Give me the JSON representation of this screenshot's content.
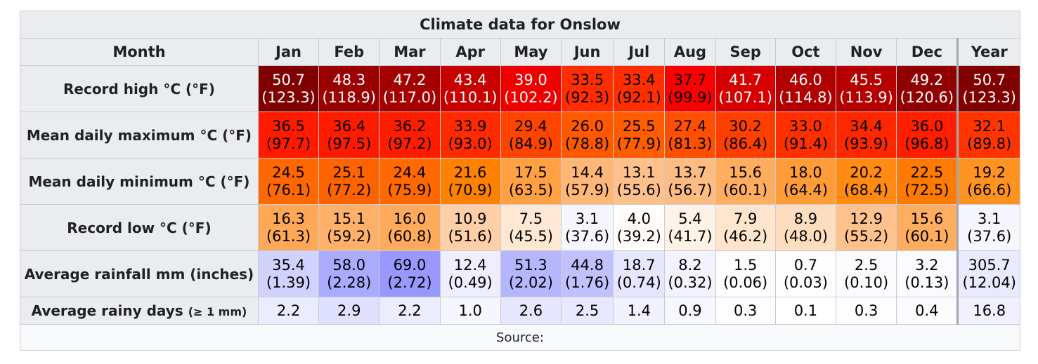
{
  "title": "Climate data for Onslow",
  "header": {
    "month_label": "Month",
    "months": [
      "Jan",
      "Feb",
      "Mar",
      "Apr",
      "May",
      "Jun",
      "Jul",
      "Aug",
      "Sep",
      "Oct",
      "Nov",
      "Dec"
    ],
    "year_label": "Year"
  },
  "rows": [
    {
      "label": "Record high °C (°F)",
      "cells": [
        {
          "c": "50.7",
          "f": "(123.3)",
          "bg": "#800000",
          "fg": "#ffffff"
        },
        {
          "c": "48.3",
          "f": "(118.9)",
          "bg": "#990000",
          "fg": "#ffffff"
        },
        {
          "c": "47.2",
          "f": "(117.0)",
          "bg": "#a40000",
          "fg": "#ffffff"
        },
        {
          "c": "43.4",
          "f": "(110.1)",
          "bg": "#c70000",
          "fg": "#ffffff"
        },
        {
          "c": "39.0",
          "f": "(102.2)",
          "bg": "#ee0000",
          "fg": "#ffffff"
        },
        {
          "c": "33.5",
          "f": "(92.3)",
          "bg": "#ff2d00",
          "fg": "#000000"
        },
        {
          "c": "33.4",
          "f": "(92.1)",
          "bg": "#ff2e00",
          "fg": "#000000"
        },
        {
          "c": "37.7",
          "f": "(99.9)",
          "bg": "#fa0000",
          "fg": "#000000"
        },
        {
          "c": "41.7",
          "f": "(107.1)",
          "bg": "#d60000",
          "fg": "#ffffff"
        },
        {
          "c": "46.0",
          "f": "(114.8)",
          "bg": "#b00000",
          "fg": "#ffffff"
        },
        {
          "c": "45.5",
          "f": "(113.9)",
          "bg": "#b40000",
          "fg": "#ffffff"
        },
        {
          "c": "49.2",
          "f": "(120.6)",
          "bg": "#900000",
          "fg": "#ffffff"
        }
      ],
      "year": {
        "c": "50.7",
        "f": "(123.3)",
        "bg": "#800000",
        "fg": "#ffffff"
      }
    },
    {
      "label": "Mean daily maximum °C (°F)",
      "cells": [
        {
          "c": "36.5",
          "f": "(97.7)",
          "bg": "#ff1a00",
          "fg": "#000000"
        },
        {
          "c": "36.4",
          "f": "(97.5)",
          "bg": "#ff1b00",
          "fg": "#000000"
        },
        {
          "c": "36.2",
          "f": "(97.2)",
          "bg": "#ff1d00",
          "fg": "#000000"
        },
        {
          "c": "33.9",
          "f": "(93.0)",
          "bg": "#ff2a00",
          "fg": "#000000"
        },
        {
          "c": "29.4",
          "f": "(84.9)",
          "bg": "#ff4400",
          "fg": "#000000"
        },
        {
          "c": "26.0",
          "f": "(78.8)",
          "bg": "#ff5900",
          "fg": "#000000"
        },
        {
          "c": "25.5",
          "f": "(77.9)",
          "bg": "#ff5d00",
          "fg": "#000000"
        },
        {
          "c": "27.4",
          "f": "(81.3)",
          "bg": "#ff4f00",
          "fg": "#000000"
        },
        {
          "c": "30.2",
          "f": "(86.4)",
          "bg": "#ff3f00",
          "fg": "#000000"
        },
        {
          "c": "33.0",
          "f": "(91.4)",
          "bg": "#ff2f00",
          "fg": "#000000"
        },
        {
          "c": "34.4",
          "f": "(93.9)",
          "bg": "#ff2700",
          "fg": "#000000"
        },
        {
          "c": "36.0",
          "f": "(96.8)",
          "bg": "#ff1e00",
          "fg": "#000000"
        }
      ],
      "year": {
        "c": "32.1",
        "f": "(89.8)",
        "bg": "#ff3400",
        "fg": "#000000"
      }
    },
    {
      "label": "Mean daily minimum °C (°F)",
      "cells": [
        {
          "c": "24.5",
          "f": "(76.1)",
          "bg": "#ff6800",
          "fg": "#000000"
        },
        {
          "c": "25.1",
          "f": "(77.2)",
          "bg": "#ff6300",
          "fg": "#000000"
        },
        {
          "c": "24.4",
          "f": "(75.9)",
          "bg": "#ff6900",
          "fg": "#000000"
        },
        {
          "c": "21.6",
          "f": "(70.9)",
          "bg": "#ff8100",
          "fg": "#000000"
        },
        {
          "c": "17.5",
          "f": "(63.5)",
          "bg": "#ffa042",
          "fg": "#000000"
        },
        {
          "c": "14.4",
          "f": "(57.9)",
          "bg": "#ffb777",
          "fg": "#000000"
        },
        {
          "c": "13.1",
          "f": "(55.6)",
          "bg": "#ffc08c",
          "fg": "#000000"
        },
        {
          "c": "13.7",
          "f": "(56.7)",
          "bg": "#ffbc82",
          "fg": "#000000"
        },
        {
          "c": "15.6",
          "f": "(60.1)",
          "bg": "#ffae60",
          "fg": "#000000"
        },
        {
          "c": "18.0",
          "f": "(64.4)",
          "bg": "#ff9c38",
          "fg": "#000000"
        },
        {
          "c": "20.2",
          "f": "(68.4)",
          "bg": "#ff8b12",
          "fg": "#000000"
        },
        {
          "c": "22.5",
          "f": "(72.5)",
          "bg": "#ff7a00",
          "fg": "#000000"
        }
      ],
      "year": {
        "c": "19.2",
        "f": "(66.6)",
        "bg": "#ff9322",
        "fg": "#000000"
      }
    },
    {
      "label": "Record low °C (°F)",
      "cells": [
        {
          "c": "16.3",
          "f": "(61.3)",
          "bg": "#ffa958",
          "fg": "#000000"
        },
        {
          "c": "15.1",
          "f": "(59.2)",
          "bg": "#ffb16a",
          "fg": "#000000"
        },
        {
          "c": "16.0",
          "f": "(60.8)",
          "bg": "#ffaa5c",
          "fg": "#000000"
        },
        {
          "c": "10.9",
          "f": "(51.6)",
          "bg": "#ffcfa8",
          "fg": "#000000"
        },
        {
          "c": "7.5",
          "f": "(45.5)",
          "bg": "#ffe8d3",
          "fg": "#000000"
        },
        {
          "c": "3.1",
          "f": "(37.6)",
          "bg": "#f6f6ff",
          "fg": "#000000"
        },
        {
          "c": "4.0",
          "f": "(39.2)",
          "bg": "#fffcf9",
          "fg": "#000000"
        },
        {
          "c": "5.4",
          "f": "(41.7)",
          "bg": "#fff2e6",
          "fg": "#000000"
        },
        {
          "c": "7.9",
          "f": "(46.2)",
          "bg": "#ffe5cd",
          "fg": "#000000"
        },
        {
          "c": "8.9",
          "f": "(48.0)",
          "bg": "#ffdec0",
          "fg": "#000000"
        },
        {
          "c": "12.9",
          "f": "(55.2)",
          "bg": "#ffc28e",
          "fg": "#000000"
        },
        {
          "c": "15.6",
          "f": "(60.1)",
          "bg": "#ffae60",
          "fg": "#000000"
        }
      ],
      "year": {
        "c": "3.1",
        "f": "(37.6)",
        "bg": "#f6f6ff",
        "fg": "#000000"
      }
    },
    {
      "label": "Average rainfall mm (inches)",
      "cells": [
        {
          "c": "35.4",
          "f": "(1.39)",
          "bg": "#d2d2ff",
          "fg": "#000000"
        },
        {
          "c": "58.0",
          "f": "(2.28)",
          "bg": "#aaaaff",
          "fg": "#000000"
        },
        {
          "c": "69.0",
          "f": "(2.72)",
          "bg": "#9898ff",
          "fg": "#000000"
        },
        {
          "c": "12.4",
          "f": "(0.49)",
          "bg": "#eeeeff",
          "fg": "#000000"
        },
        {
          "c": "51.3",
          "f": "(2.02)",
          "bg": "#b6b6ff",
          "fg": "#000000"
        },
        {
          "c": "44.8",
          "f": "(1.76)",
          "bg": "#c1c1ff",
          "fg": "#000000"
        },
        {
          "c": "18.7",
          "f": "(0.74)",
          "bg": "#e6e6ff",
          "fg": "#000000"
        },
        {
          "c": "8.2",
          "f": "(0.32)",
          "bg": "#f3f3ff",
          "fg": "#000000"
        },
        {
          "c": "1.5",
          "f": "(0.06)",
          "bg": "#fdfdff",
          "fg": "#000000"
        },
        {
          "c": "0.7",
          "f": "(0.03)",
          "bg": "#fefeff",
          "fg": "#000000"
        },
        {
          "c": "2.5",
          "f": "(0.10)",
          "bg": "#fcfcff",
          "fg": "#000000"
        },
        {
          "c": "3.2",
          "f": "(0.13)",
          "bg": "#fbfbff",
          "fg": "#000000"
        }
      ],
      "year": {
        "c": "305.7",
        "f": "(12.04)",
        "bg": "#eaeaff",
        "fg": "#000000"
      }
    }
  ],
  "rainy_days": {
    "label": "Average rainy days",
    "label_small": "(≥ 1 mm)",
    "cells": [
      {
        "v": "2.2",
        "bg": "#ececff"
      },
      {
        "v": "2.9",
        "bg": "#e0e0ff"
      },
      {
        "v": "2.2",
        "bg": "#ececff"
      },
      {
        "v": "1.0",
        "bg": "#f6f6ff"
      },
      {
        "v": "2.6",
        "bg": "#e6e6ff"
      },
      {
        "v": "2.5",
        "bg": "#e8e8ff"
      },
      {
        "v": "1.4",
        "bg": "#f2f2ff"
      },
      {
        "v": "0.9",
        "bg": "#f7f7ff"
      },
      {
        "v": "0.3",
        "bg": "#fdfdff"
      },
      {
        "v": "0.1",
        "bg": "#ffffff"
      },
      {
        "v": "0.3",
        "bg": "#fdfdff"
      },
      {
        "v": "0.4",
        "bg": "#fcfcff"
      }
    ],
    "year": {
      "v": "16.8",
      "bg": "#f0f0ff"
    }
  },
  "source": "Source:"
}
